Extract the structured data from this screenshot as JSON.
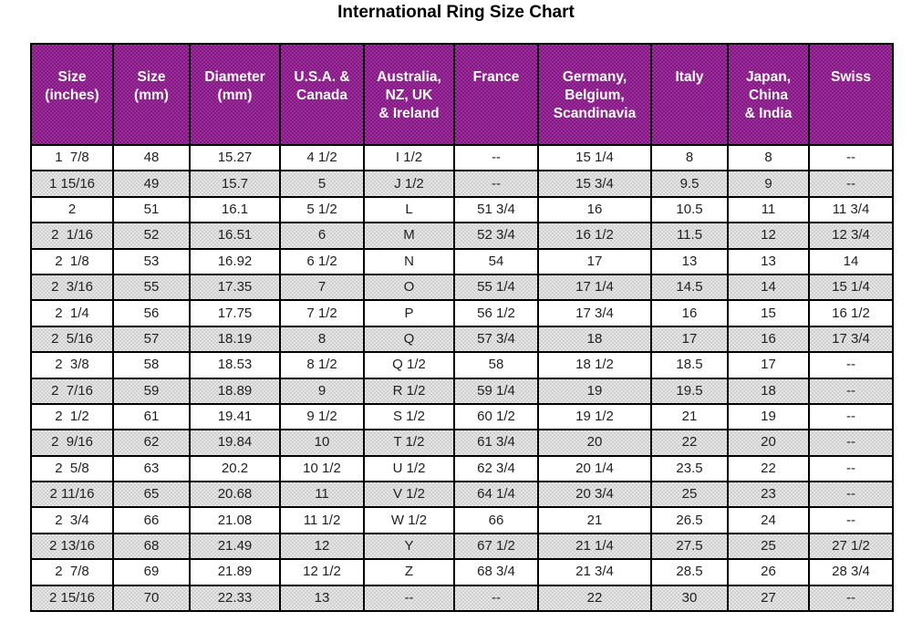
{
  "title": "International Ring Size Chart",
  "colors": {
    "header_bg": "#8F188F",
    "header_text": "#FFFFFF",
    "row_alt_bg": "#D6D6D6",
    "border": "#000000",
    "text": "#1F1F1F"
  },
  "chart_data": {
    "type": "table",
    "title": "International Ring Size Chart",
    "columns": [
      "Size\n(inches)",
      "Size\n(mm)",
      "Diameter\n(mm)",
      "U.S.A. &\nCanada",
      "Australia,\nNZ, UK\n& Ireland",
      "France",
      "Germany,\nBelgium,\nScandinavia",
      "Italy",
      "Japan,\nChina\n& India",
      "Swiss"
    ],
    "rows": [
      [
        "1  7/8",
        "48",
        "15.27",
        "4 1/2",
        "I 1/2",
        "--",
        "15 1/4",
        "8",
        "8",
        "--"
      ],
      [
        "1 15/16",
        "49",
        "15.7",
        "5",
        "J 1/2",
        "--",
        "15 3/4",
        "9.5",
        "9",
        "--"
      ],
      [
        "2",
        "51",
        "16.1",
        "5 1/2",
        "L",
        "51 3/4",
        "16",
        "10.5",
        "11",
        "11 3/4"
      ],
      [
        "2  1/16",
        "52",
        "16.51",
        "6",
        "M",
        "52 3/4",
        "16 1/2",
        "11.5",
        "12",
        "12 3/4"
      ],
      [
        "2  1/8",
        "53",
        "16.92",
        "6 1/2",
        "N",
        "54",
        "17",
        "13",
        "13",
        "14"
      ],
      [
        "2  3/16",
        "55",
        "17.35",
        "7",
        "O",
        "55 1/4",
        "17 1/4",
        "14.5",
        "14",
        "15 1/4"
      ],
      [
        "2  1/4",
        "56",
        "17.75",
        "7 1/2",
        "P",
        "56 1/2",
        "17 3/4",
        "16",
        "15",
        "16 1/2"
      ],
      [
        "2  5/16",
        "57",
        "18.19",
        "8",
        "Q",
        "57 3/4",
        "18",
        "17",
        "16",
        "17 3/4"
      ],
      [
        "2  3/8",
        "58",
        "18.53",
        "8 1/2",
        "Q 1/2",
        "58",
        "18 1/2",
        "18.5",
        "17",
        "--"
      ],
      [
        "2  7/16",
        "59",
        "18.89",
        "9",
        "R 1/2",
        "59 1/4",
        "19",
        "19.5",
        "18",
        "--"
      ],
      [
        "2  1/2",
        "61",
        "19.41",
        "9 1/2",
        "S 1/2",
        "60 1/2",
        "19 1/2",
        "21",
        "19",
        "--"
      ],
      [
        "2  9/16",
        "62",
        "19.84",
        "10",
        "T 1/2",
        "61 3/4",
        "20",
        "22",
        "20",
        "--"
      ],
      [
        "2  5/8",
        "63",
        "20.2",
        "10 1/2",
        "U 1/2",
        "62 3/4",
        "20 1/4",
        "23.5",
        "22",
        "--"
      ],
      [
        "2 11/16",
        "65",
        "20.68",
        "11",
        "V 1/2",
        "64 1/4",
        "20 3/4",
        "25",
        "23",
        "--"
      ],
      [
        "2  3/4",
        "66",
        "21.08",
        "11 1/2",
        "W 1/2",
        "66",
        "21",
        "26.5",
        "24",
        "--"
      ],
      [
        "2 13/16",
        "68",
        "21.49",
        "12",
        "Y",
        "67 1/2",
        "21 1/4",
        "27.5",
        "25",
        "27 1/2"
      ],
      [
        "2  7/8",
        "69",
        "21.89",
        "12 1/2",
        "Z",
        "68 3/4",
        "21 3/4",
        "28.5",
        "26",
        "28 3/4"
      ],
      [
        "2 15/16",
        "70",
        "22.33",
        "13",
        "--",
        "--",
        "22",
        "30",
        "27",
        "--"
      ]
    ]
  }
}
